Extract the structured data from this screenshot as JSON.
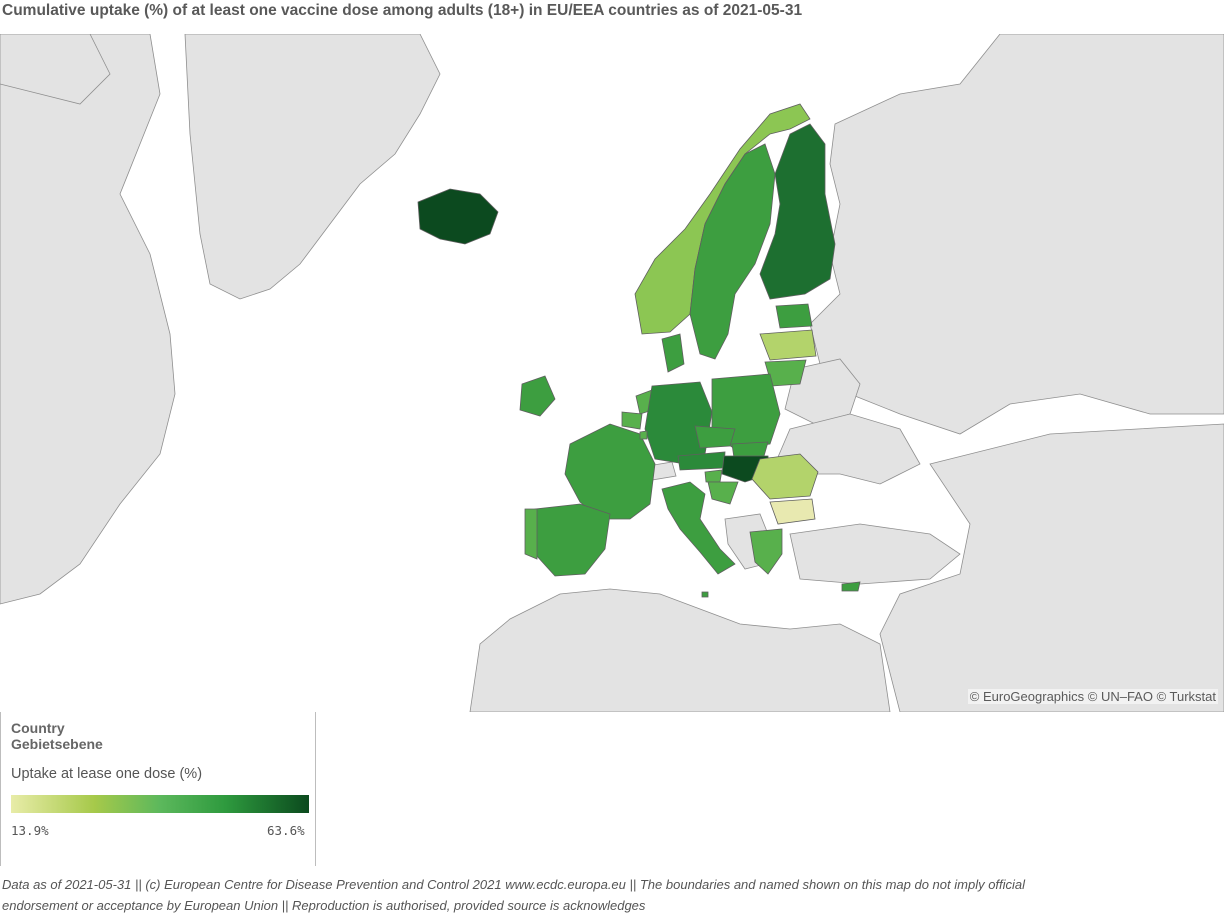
{
  "title": "Cumulative uptake (%) of at least one vaccine dose among adults (18+) in EU/EEA countries as of 2021-05-31",
  "map": {
    "attribution": "© EuroGeographics © UN–FAO © Turkstat",
    "colors": {
      "land": "#e3e3e3",
      "sea": "#ffffff",
      "border": "#8f8f8f",
      "c_pale": "#e8e9b0",
      "c_lime": "#b3d36b",
      "c_light": "#8cc653",
      "c_mid": "#58b04c",
      "c_med": "#3d9e40",
      "c_dark": "#2b8a3a",
      "c_darker": "#1d6f30",
      "c_darkest": "#0c4a1f"
    }
  },
  "legend": {
    "level_line1": "Country",
    "level_line2": "Gebietsebene",
    "measure": "Uptake at lease one dose (%)",
    "min_label": "13.9%",
    "max_label": "63.6%",
    "min_value": 13.9,
    "max_value": 63.6
  },
  "footer": {
    "line1": "Data as of 2021-05-31 || (c) European Centre for Disease Prevention and Control 2021 www.ecdc.europa.eu || The boundaries and named shown on this map do not imply official",
    "line2": "endorsement or acceptance by European Union || Reproduction is authorised, provided source is acknowledges"
  }
}
